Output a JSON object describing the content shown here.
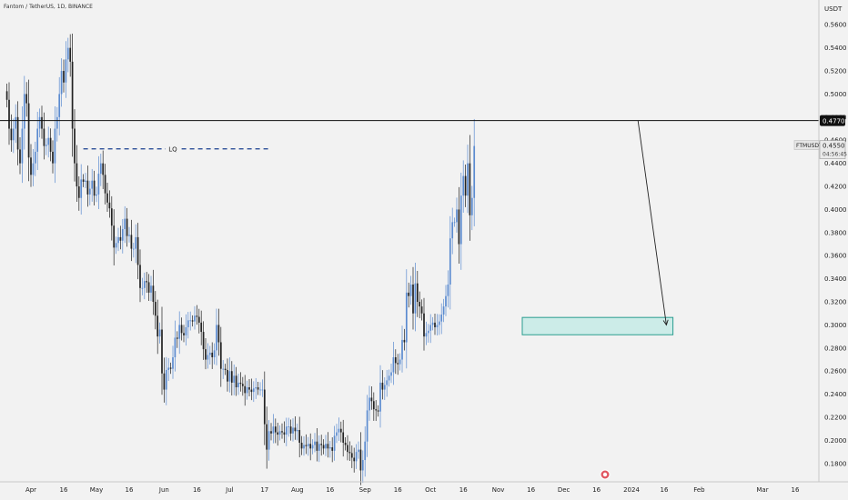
{
  "header": {
    "symbol_title": "Fantom / TetherUS, 1D, BINANCE",
    "currency": "USDT"
  },
  "colors": {
    "background": "#f2f2f2",
    "candle_up": "#5b8bd0",
    "candle_down": "#222222",
    "resistance_line": "#111111",
    "lq_line": "#1a3f8f",
    "zone_fill": "#bfe9e4",
    "zone_border": "#2a9d8f",
    "price_label_bg": "#111111",
    "price_label_text": "#ffffff"
  },
  "annotations": {
    "lq_label": "LQ",
    "resistance_price": "0.4770",
    "symbol_label": "FTMUSDT",
    "last_price": "0.4550",
    "countdown": "04:56:45"
  },
  "chart_data": {
    "type": "candlestick",
    "title": "Fantom / TetherUS, 1D, BINANCE",
    "y_unit": "USDT",
    "y_range": [
      0.172,
      0.572
    ],
    "y_ticks": [
      "0.5600",
      "0.5400",
      "0.5200",
      "0.5000",
      "0.4800",
      "0.4600",
      "0.4400",
      "0.4200",
      "0.4000",
      "0.3800",
      "0.3600",
      "0.3400",
      "0.3200",
      "0.3000",
      "0.2800",
      "0.2600",
      "0.2400",
      "0.2200",
      "0.2000",
      "0.1800"
    ],
    "y_tick_values": [
      0.56,
      0.54,
      0.52,
      0.5,
      0.48,
      0.46,
      0.44,
      0.42,
      0.4,
      0.38,
      0.36,
      0.34,
      0.32,
      0.3,
      0.28,
      0.26,
      0.24,
      0.22,
      0.2,
      0.18
    ],
    "x_ticks": [
      "Apr",
      "16",
      "May",
      "16",
      "Jun",
      "16",
      "Jul",
      "17",
      "Aug",
      "16",
      "Sep",
      "16",
      "Oct",
      "16",
      "Nov",
      "16",
      "Dec",
      "16",
      "2024",
      "16",
      "Feb",
      "Mar",
      "16"
    ],
    "x_tick_dates": [
      "2023-04-01",
      "2023-04-16",
      "2023-05-01",
      "2023-05-16",
      "2023-06-01",
      "2023-06-16",
      "2023-07-01",
      "2023-07-17",
      "2023-08-01",
      "2023-08-16",
      "2023-09-01",
      "2023-09-16",
      "2023-10-01",
      "2023-10-16",
      "2023-11-01",
      "2023-11-16",
      "2023-12-01",
      "2023-12-16",
      "2024-01-01",
      "2024-01-16",
      "2024-02-01",
      "2024-03-01",
      "2024-03-16"
    ],
    "closes_from_date": "2023-03-21",
    "closes": [
      0.495,
      0.47,
      0.46,
      0.47,
      0.48,
      0.452,
      0.44,
      0.47,
      0.5,
      0.492,
      0.445,
      0.43,
      0.44,
      0.45,
      0.47,
      0.48,
      0.47,
      0.455,
      0.456,
      0.462,
      0.45,
      0.44,
      0.47,
      0.48,
      0.5,
      0.52,
      0.51,
      0.53,
      0.54,
      0.528,
      0.47,
      0.44,
      0.42,
      0.41,
      0.426,
      0.424,
      0.425,
      0.413,
      0.418,
      0.425,
      0.412,
      0.413,
      0.431,
      0.44,
      0.43,
      0.414,
      0.406,
      0.401,
      0.386,
      0.367,
      0.371,
      0.376,
      0.373,
      0.383,
      0.392,
      0.377,
      0.378,
      0.366,
      0.366,
      0.376,
      0.352,
      0.332,
      0.332,
      0.338,
      0.337,
      0.328,
      0.334,
      0.32,
      0.308,
      0.29,
      0.296,
      0.258,
      0.244,
      0.261,
      0.263,
      0.262,
      0.272,
      0.289,
      0.288,
      0.3,
      0.293,
      0.291,
      0.298,
      0.304,
      0.304,
      0.303,
      0.308,
      0.307,
      0.302,
      0.294,
      0.279,
      0.27,
      0.274,
      0.276,
      0.272,
      0.278,
      0.3,
      0.285,
      0.262,
      0.262,
      0.261,
      0.251,
      0.26,
      0.25,
      0.256,
      0.246,
      0.25,
      0.249,
      0.247,
      0.241,
      0.246,
      0.244,
      0.242,
      0.245,
      0.246,
      0.244,
      0.244,
      0.244,
      0.214,
      0.192,
      0.208,
      0.206,
      0.212,
      0.207,
      0.205,
      0.208,
      0.207,
      0.205,
      0.212,
      0.212,
      0.206,
      0.211,
      0.208,
      0.209,
      0.198,
      0.193,
      0.196,
      0.195,
      0.197,
      0.193,
      0.196,
      0.199,
      0.191,
      0.197,
      0.196,
      0.193,
      0.197,
      0.193,
      0.194,
      0.191,
      0.204,
      0.207,
      0.21,
      0.207,
      0.198,
      0.196,
      0.19,
      0.189,
      0.185,
      0.182,
      0.19,
      0.192,
      0.174,
      0.183,
      0.199,
      0.226,
      0.237,
      0.234,
      0.227,
      0.226,
      0.225,
      0.25,
      0.244,
      0.248,
      0.252,
      0.256,
      0.259,
      0.272,
      0.267,
      0.266,
      0.27,
      0.287,
      0.285,
      0.328,
      0.325,
      0.335,
      0.31,
      0.336,
      0.32,
      0.316,
      0.31,
      0.29,
      0.293,
      0.295,
      0.3,
      0.302,
      0.298,
      0.3,
      0.303,
      0.309,
      0.316,
      0.325,
      0.335,
      0.375,
      0.389,
      0.389,
      0.4,
      0.37,
      0.412,
      0.429,
      0.412,
      0.44,
      0.395,
      0.41,
      0.455
    ],
    "resistance_level": 0.477,
    "lq_level": 0.4525,
    "demand_zone": [
      0.2915,
      0.3065
    ],
    "projection": {
      "from": 0.477,
      "to": 0.3
    }
  }
}
